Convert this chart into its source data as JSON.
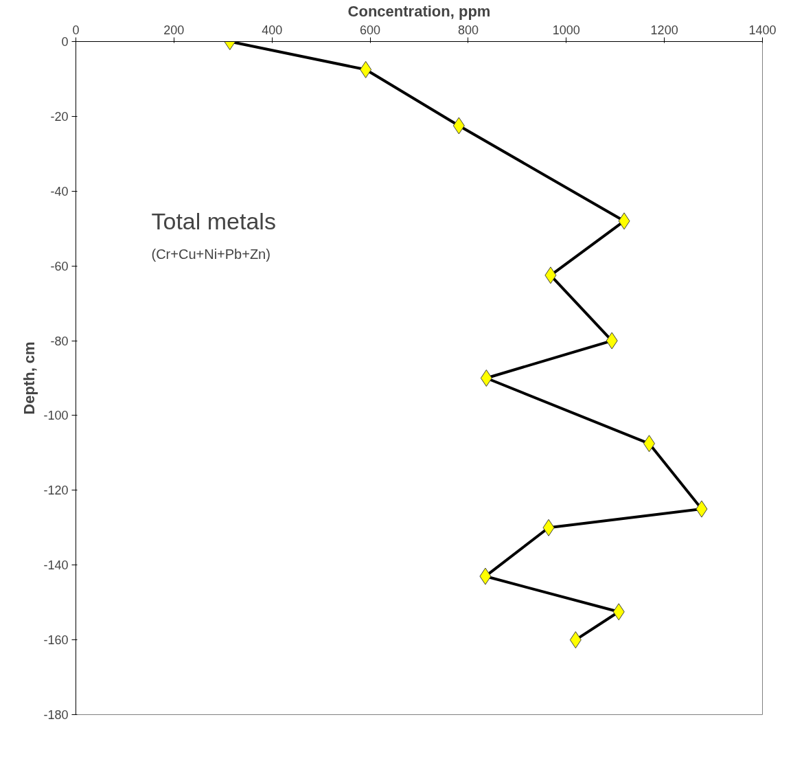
{
  "chart_data": {
    "type": "line",
    "xlabel": "Concentration, ppm",
    "ylabel": "Depth, cm",
    "annotations": [
      "Total metals",
      "(Cr+Cu+Ni+Pb+Zn)"
    ],
    "x": [
      314,
      591,
      781,
      1118,
      968,
      1093,
      837,
      1169,
      1276,
      964,
      835,
      1107,
      1019
    ],
    "series": [
      {
        "color": "#000000",
        "colors": [
          "#ffff00",
          "#ffff00",
          "#ffff00",
          "#ffff00",
          "#ffff00",
          "#ffff00",
          "#ffff00",
          "#ffff00",
          "#ffff00",
          "#ffff00",
          "#ffff00",
          "#ffff00",
          "#ffff00"
        ],
        "values": [
          0,
          -7.5,
          -22.5,
          -48,
          -62.5,
          -80,
          -90,
          -107.5,
          -125,
          -130,
          -143,
          -152.5,
          -160
        ]
      }
    ],
    "xlim": [
      0,
      1400
    ],
    "xticks": [
      0,
      200,
      400,
      600,
      800,
      1000,
      1200,
      1400
    ],
    "ylim": [
      -180,
      0
    ],
    "yticks": [
      0,
      -20,
      -40,
      -60,
      -80,
      -100,
      -120,
      -140,
      -160,
      -180
    ],
    "grid": false,
    "marker": "diamond",
    "line_style": "solid"
  }
}
